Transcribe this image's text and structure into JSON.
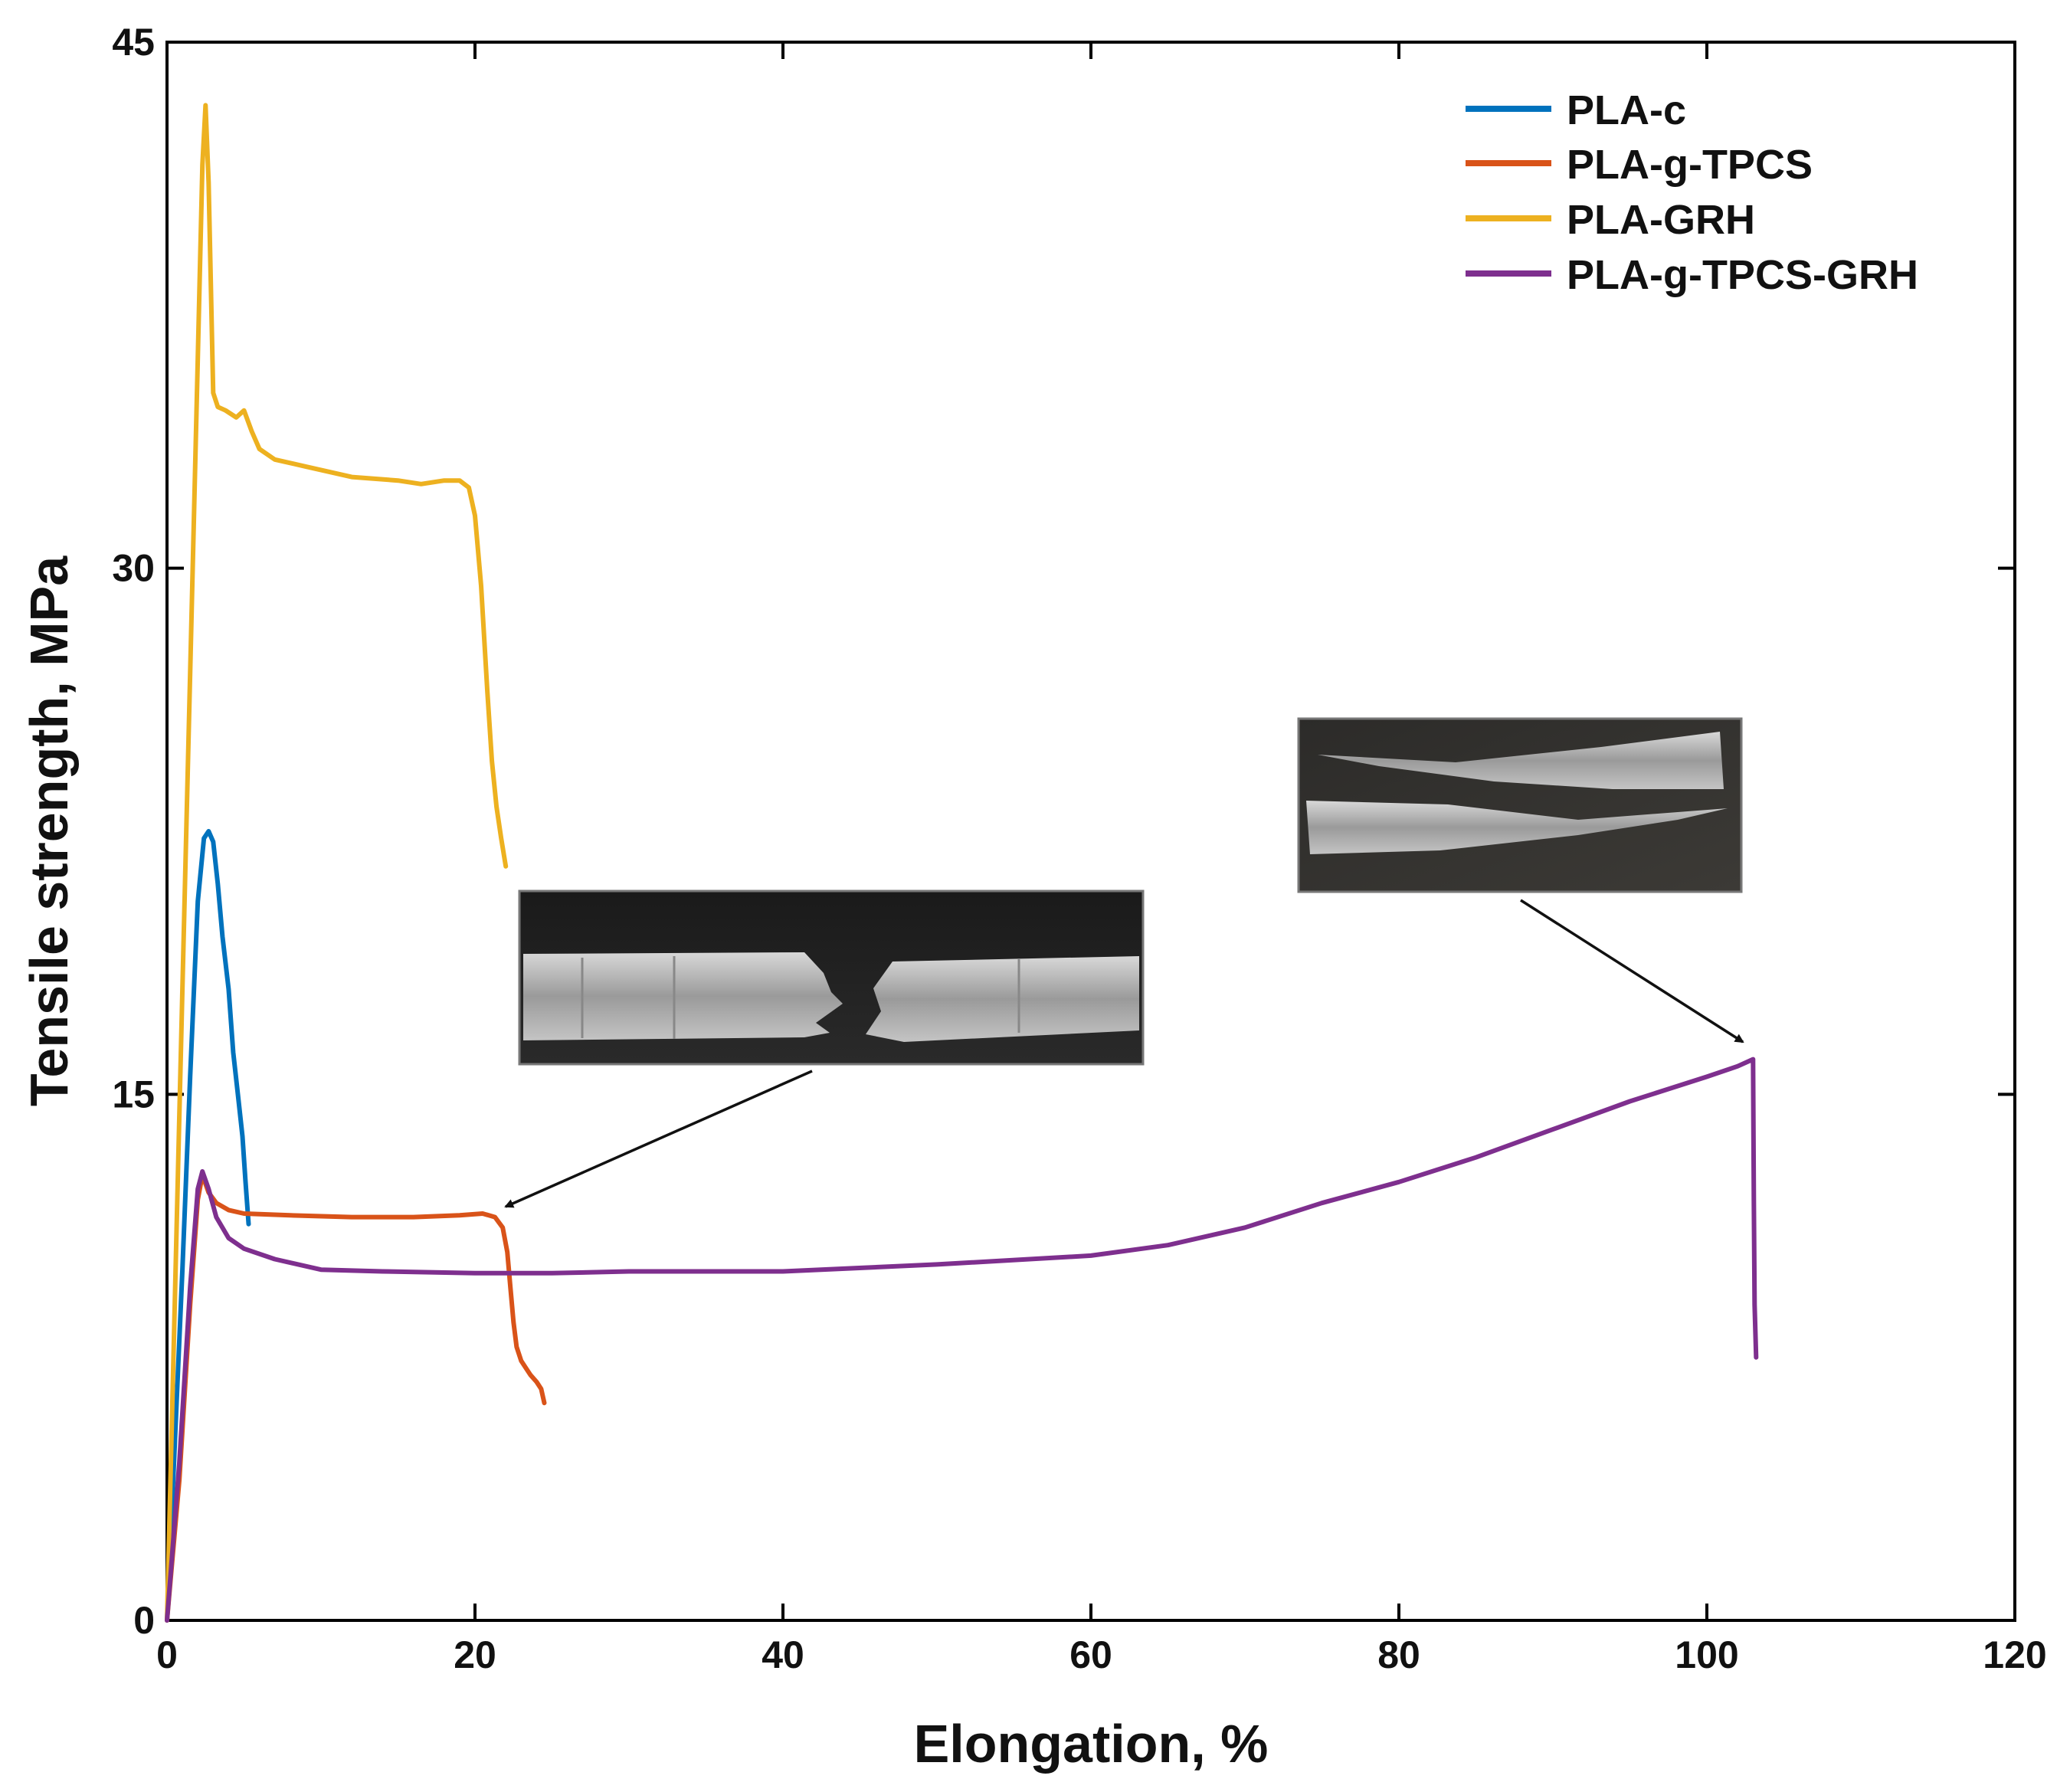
{
  "chart_data": {
    "type": "line",
    "title": "",
    "xlabel": "Elongation, %",
    "ylabel": "Tensile strength, MPa",
    "xlim": [
      0,
      120
    ],
    "ylim": [
      0,
      45
    ],
    "xticks": [
      0,
      20,
      40,
      60,
      80,
      100,
      120
    ],
    "yticks": [
      0,
      15,
      30,
      45
    ],
    "legend_position": "top-right",
    "series": [
      {
        "name": "PLA-c",
        "color": "#0072BD",
        "x": [
          0,
          0.5,
          1.0,
          1.5,
          2.0,
          2.4,
          2.7,
          3.0,
          3.3,
          3.6,
          4.0,
          4.3,
          4.6,
          4.9,
          5.1,
          5.3
        ],
        "y": [
          0,
          5,
          10,
          15.5,
          20.5,
          22.3,
          22.5,
          22.2,
          21.0,
          19.5,
          18.0,
          16.2,
          15.0,
          13.8,
          12.5,
          11.3
        ]
      },
      {
        "name": "PLA-g-TPCS",
        "color": "#D95319",
        "x": [
          0,
          0.8,
          1.5,
          2.0,
          2.3,
          2.7,
          3.2,
          4.0,
          5.0,
          8.0,
          12.0,
          16.0,
          19.0,
          20.5,
          21.3,
          21.8,
          22.1,
          22.3,
          22.5,
          22.7,
          23.0,
          23.3,
          23.6,
          24.0,
          24.3,
          24.5
        ],
        "y": [
          0,
          4,
          9,
          12,
          12.7,
          12.2,
          11.9,
          11.7,
          11.6,
          11.55,
          11.5,
          11.5,
          11.55,
          11.6,
          11.5,
          11.2,
          10.5,
          9.5,
          8.5,
          7.8,
          7.4,
          7.2,
          7.0,
          6.8,
          6.6,
          6.2
        ]
      },
      {
        "name": "PLA-GRH",
        "color": "#EDB120",
        "x": [
          0,
          0.5,
          1.0,
          1.5,
          2.0,
          2.3,
          2.5,
          2.7,
          3.0,
          3.3,
          3.8,
          4.5,
          5.0,
          5.5,
          6.0,
          7.0,
          9.0,
          12.0,
          15.0,
          16.5,
          18.0,
          19.0,
          19.6,
          20.0,
          20.4,
          20.8,
          21.1,
          21.4,
          21.7,
          22.0
        ],
        "y": [
          0,
          9,
          18,
          27,
          36,
          41.5,
          43.2,
          41.0,
          35.0,
          34.6,
          34.5,
          34.3,
          34.5,
          33.9,
          33.4,
          33.1,
          32.9,
          32.6,
          32.5,
          32.4,
          32.5,
          32.5,
          32.3,
          31.5,
          29.5,
          26.5,
          24.5,
          23.2,
          22.3,
          21.5
        ]
      },
      {
        "name": "PLA-g-TPCS-GRH",
        "color": "#7E2F8E",
        "x": [
          0,
          0.8,
          1.5,
          2.0,
          2.3,
          2.7,
          3.2,
          4.0,
          5.0,
          7.0,
          10.0,
          14.0,
          20.0,
          25.0,
          30.0,
          40.0,
          50.0,
          60.0,
          65.0,
          70.0,
          75.0,
          80.0,
          85.0,
          90.0,
          95.0,
          100.0,
          102.0,
          103.0,
          103.05,
          103.1,
          103.2
        ],
        "y": [
          0,
          4.5,
          9.5,
          12.3,
          12.8,
          12.3,
          11.5,
          10.9,
          10.6,
          10.3,
          10.0,
          9.95,
          9.9,
          9.9,
          9.95,
          9.95,
          10.15,
          10.4,
          10.7,
          11.2,
          11.9,
          12.5,
          13.2,
          14.0,
          14.8,
          15.5,
          15.8,
          16.0,
          12.0,
          9.0,
          7.5
        ]
      }
    ],
    "annotations": [
      {
        "type": "arrow",
        "target": [
          22.0,
          11.7
        ],
        "description": "photo of fractured PLA-g-TPCS specimen"
      },
      {
        "type": "arrow",
        "target": [
          102.8,
          16.0
        ],
        "description": "photo of fractured PLA-g-TPCS-GRH specimen"
      }
    ]
  }
}
